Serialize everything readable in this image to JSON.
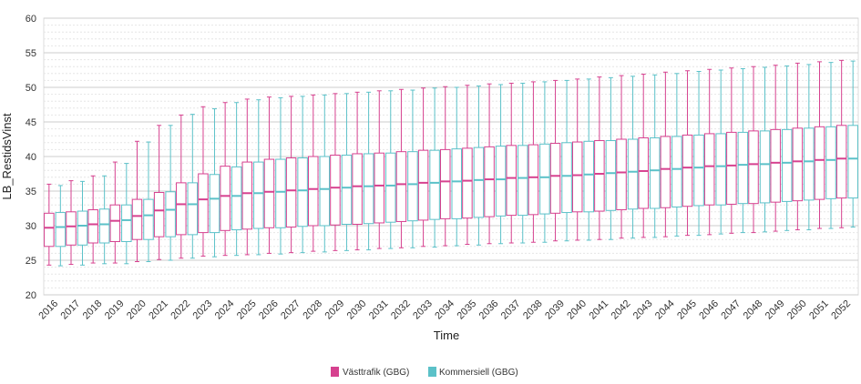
{
  "chart_data": {
    "type": "boxplot",
    "title": "",
    "xlabel": "Time",
    "ylabel": "LB_RestidsVinst",
    "ylim": [
      20,
      60
    ],
    "y_ticks": [
      20,
      25,
      30,
      35,
      40,
      45,
      50,
      55,
      60
    ],
    "grid": true,
    "legend_position": "bottom-center",
    "categories": [
      "2016",
      "2017",
      "2018",
      "2019",
      "2020",
      "2021",
      "2022",
      "2023",
      "2024",
      "2025",
      "2026",
      "2027",
      "2028",
      "2029",
      "2030",
      "2031",
      "2032",
      "2033",
      "2034",
      "2035",
      "2036",
      "2037",
      "2038",
      "2039",
      "2040",
      "2041",
      "2042",
      "2043",
      "2044",
      "2045",
      "2046",
      "2047",
      "2048",
      "2049",
      "2050",
      "2051",
      "2052"
    ],
    "series": [
      {
        "name": "Västtrafik (GBG)",
        "color": "#d6418f",
        "min": [
          24.3,
          24.4,
          24.6,
          24.6,
          24.8,
          25.1,
          25.3,
          25.6,
          25.7,
          25.8,
          26.0,
          26.1,
          26.3,
          26.4,
          26.5,
          26.7,
          26.8,
          27.0,
          27.1,
          27.3,
          27.4,
          27.5,
          27.6,
          27.8,
          27.9,
          28.0,
          28.2,
          28.3,
          28.4,
          28.6,
          28.7,
          28.9,
          29.0,
          29.2,
          29.4,
          29.6,
          29.7
        ],
        "q1": [
          27.0,
          27.2,
          27.5,
          27.7,
          28.0,
          28.4,
          28.7,
          29.0,
          29.3,
          29.5,
          29.7,
          29.8,
          30.0,
          30.1,
          30.2,
          30.4,
          30.6,
          30.8,
          31.0,
          31.1,
          31.3,
          31.5,
          31.6,
          31.8,
          32.0,
          32.1,
          32.3,
          32.5,
          32.6,
          32.8,
          33.0,
          33.1,
          33.2,
          33.4,
          33.6,
          33.8,
          34.0
        ],
        "median": [
          29.7,
          29.9,
          30.2,
          30.7,
          31.4,
          32.2,
          33.1,
          33.8,
          34.3,
          34.7,
          34.9,
          35.1,
          35.3,
          35.5,
          35.7,
          35.8,
          36.0,
          36.2,
          36.4,
          36.5,
          36.7,
          36.9,
          37.0,
          37.2,
          37.3,
          37.5,
          37.7,
          37.9,
          38.2,
          38.4,
          38.6,
          38.7,
          38.9,
          39.1,
          39.3,
          39.5,
          39.7
        ],
        "q3": [
          31.8,
          32.0,
          32.3,
          33.0,
          33.8,
          34.8,
          36.2,
          37.5,
          38.6,
          39.2,
          39.6,
          39.8,
          40.0,
          40.2,
          40.4,
          40.5,
          40.7,
          40.9,
          41.0,
          41.2,
          41.4,
          41.6,
          41.7,
          41.9,
          42.1,
          42.3,
          42.5,
          42.7,
          42.9,
          43.1,
          43.3,
          43.5,
          43.7,
          43.9,
          44.1,
          44.3,
          44.5
        ],
        "max": [
          36.0,
          36.5,
          37.2,
          39.2,
          42.2,
          44.5,
          46.0,
          47.2,
          47.8,
          48.3,
          48.6,
          48.7,
          48.9,
          49.1,
          49.3,
          49.5,
          49.7,
          49.9,
          50.1,
          50.3,
          50.5,
          50.6,
          50.8,
          51.0,
          51.2,
          51.5,
          51.7,
          51.9,
          52.2,
          52.4,
          52.6,
          52.8,
          53.0,
          53.2,
          53.5,
          53.7,
          53.9
        ]
      },
      {
        "name": "Kommersiell (GBG)",
        "color": "#5bc1c8",
        "min": [
          24.2,
          24.3,
          24.5,
          24.5,
          24.8,
          25.0,
          25.3,
          25.5,
          25.7,
          25.8,
          25.9,
          26.1,
          26.2,
          26.4,
          26.5,
          26.7,
          26.8,
          26.9,
          27.1,
          27.2,
          27.4,
          27.5,
          27.6,
          27.8,
          27.9,
          28.0,
          28.2,
          28.3,
          28.5,
          28.6,
          28.8,
          29.0,
          29.1,
          29.3,
          29.4,
          29.6,
          29.8
        ],
        "q1": [
          27.0,
          27.2,
          27.5,
          27.7,
          28.0,
          28.4,
          28.7,
          29.0,
          29.4,
          29.6,
          29.7,
          29.9,
          30.0,
          30.2,
          30.3,
          30.5,
          30.7,
          30.9,
          31.0,
          31.2,
          31.4,
          31.5,
          31.7,
          31.9,
          32.0,
          32.2,
          32.4,
          32.5,
          32.7,
          32.9,
          33.0,
          33.2,
          33.3,
          33.5,
          33.7,
          33.9,
          34.0
        ],
        "median": [
          29.8,
          30.0,
          30.2,
          30.8,
          31.5,
          32.3,
          33.1,
          33.9,
          34.3,
          34.7,
          34.9,
          35.1,
          35.3,
          35.5,
          35.7,
          35.8,
          36.0,
          36.2,
          36.4,
          36.6,
          36.7,
          36.9,
          37.0,
          37.2,
          37.4,
          37.6,
          37.8,
          38.0,
          38.2,
          38.4,
          38.6,
          38.8,
          38.9,
          39.1,
          39.3,
          39.5,
          39.7
        ],
        "q3": [
          31.9,
          32.1,
          32.4,
          33.0,
          33.8,
          34.9,
          36.2,
          37.4,
          38.5,
          39.2,
          39.6,
          39.8,
          40.0,
          40.2,
          40.4,
          40.5,
          40.7,
          40.9,
          41.1,
          41.3,
          41.5,
          41.6,
          41.8,
          42.0,
          42.2,
          42.3,
          42.5,
          42.7,
          42.9,
          43.1,
          43.3,
          43.5,
          43.7,
          43.9,
          44.1,
          44.3,
          44.5
        ],
        "max": [
          35.8,
          36.4,
          37.2,
          39.0,
          42.1,
          44.5,
          46.1,
          46.9,
          47.8,
          48.2,
          48.5,
          48.7,
          48.9,
          49.1,
          49.3,
          49.5,
          49.6,
          49.9,
          50.0,
          50.2,
          50.4,
          50.6,
          50.8,
          51.0,
          51.2,
          51.4,
          51.6,
          51.8,
          52.0,
          52.3,
          52.5,
          52.7,
          52.9,
          53.1,
          53.3,
          53.6,
          53.8
        ]
      }
    ]
  }
}
